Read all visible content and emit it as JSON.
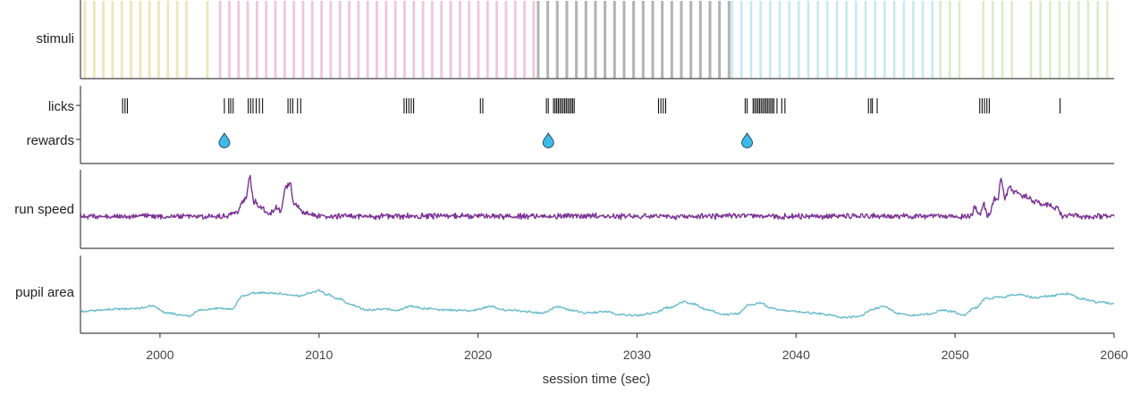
{
  "chart_data": {
    "type": "line",
    "xlabel": "session time (sec)",
    "xlim": [
      1995,
      2060
    ],
    "xticks": [
      2000,
      2010,
      2020,
      2030,
      2040,
      2050,
      2060
    ],
    "panels": [
      "stimuli",
      "licks",
      "rewards",
      "run speed",
      "pupil area"
    ],
    "colors": {
      "block1": "#f0e6b8",
      "block2": "#f0c6e0",
      "block3": "#b3b3b3",
      "block4": "#c5e8f2",
      "block5": "#d9ecc8",
      "licks": "#111111",
      "reward": "#3dbbe8",
      "run_speed": "#7b3294",
      "pupil_area": "#6bbccc",
      "axis": "#444444"
    },
    "stimuli_blocks": [
      {
        "color": "block1",
        "start": 1995.2,
        "end": 2001.6,
        "period": 0.58,
        "width": 0.16
      },
      {
        "color": "block1",
        "start": 2002.9,
        "end": 2003.3,
        "period": 0.6,
        "width": 0.16
      },
      {
        "color": "block2",
        "start": 2003.7,
        "end": 2023.5,
        "period": 0.58,
        "width": 0.16
      },
      {
        "color": "block3",
        "start": 2023.7,
        "end": 2035.8,
        "period": 0.6,
        "width": 0.17
      },
      {
        "color": "block4",
        "start": 2035.9,
        "end": 2048.9,
        "period": 0.6,
        "width": 0.14
      },
      {
        "color": "block5",
        "start": 2049.0,
        "end": 2050.2,
        "period": 0.6,
        "width": 0.14
      },
      {
        "color": "block5",
        "start": 2051.7,
        "end": 2053.6,
        "period": 0.6,
        "width": 0.14
      },
      {
        "color": "block5",
        "start": 2054.7,
        "end": 2059.6,
        "period": 0.6,
        "width": 0.14
      }
    ],
    "licks": [
      1997.65,
      1997.8,
      1997.95,
      2004.05,
      2004.32,
      2004.45,
      2004.6,
      2005.55,
      2005.7,
      2005.85,
      2006.05,
      2006.25,
      2006.45,
      2008.05,
      2008.2,
      2008.35,
      2008.65,
      2008.85,
      2015.35,
      2015.5,
      2015.65,
      2015.8,
      2015.95,
      2020.15,
      2020.3,
      2024.3,
      2024.42,
      2024.75,
      2024.85,
      2024.95,
      2025.05,
      2025.15,
      2025.25,
      2025.35,
      2025.45,
      2025.55,
      2025.65,
      2025.75,
      2025.85,
      2025.95,
      2026.05,
      2031.35,
      2031.5,
      2031.65,
      2031.8,
      2036.8,
      2036.92,
      2037.3,
      2037.4,
      2037.5,
      2037.6,
      2037.7,
      2037.8,
      2037.9,
      2038.0,
      2038.1,
      2038.2,
      2038.3,
      2038.4,
      2038.5,
      2038.6,
      2038.8,
      2039.1,
      2039.3,
      2044.55,
      2044.7,
      2044.8,
      2045.1,
      2051.55,
      2051.7,
      2051.85,
      2052.0,
      2052.15,
      2056.6
    ],
    "rewards": [
      2004.05,
      2024.42,
      2036.92
    ],
    "run_speed_peaks": [
      {
        "t": 2004.6,
        "a": 0.12,
        "w": 0.15
      },
      {
        "t": 2005.3,
        "a": 0.45,
        "w": 0.25
      },
      {
        "t": 2005.65,
        "a": 0.9,
        "w": 0.12
      },
      {
        "t": 2006.0,
        "a": 0.35,
        "w": 0.15
      },
      {
        "t": 2006.4,
        "a": 0.25,
        "w": 0.2
      },
      {
        "t": 2007.3,
        "a": 0.25,
        "w": 0.2
      },
      {
        "t": 2007.9,
        "a": 0.8,
        "w": 0.15
      },
      {
        "t": 2008.2,
        "a": 0.78,
        "w": 0.12
      },
      {
        "t": 2008.6,
        "a": 0.3,
        "w": 0.2
      },
      {
        "t": 2009.2,
        "a": 0.1,
        "w": 0.25
      },
      {
        "t": 2051.25,
        "a": 0.3,
        "w": 0.1
      },
      {
        "t": 2051.8,
        "a": 0.35,
        "w": 0.1
      },
      {
        "t": 2052.5,
        "a": 0.5,
        "w": 0.15
      },
      {
        "t": 2052.9,
        "a": 1.0,
        "w": 0.12
      },
      {
        "t": 2053.4,
        "a": 0.75,
        "w": 0.2
      },
      {
        "t": 2053.9,
        "a": 0.55,
        "w": 0.25
      },
      {
        "t": 2054.5,
        "a": 0.5,
        "w": 0.3
      },
      {
        "t": 2055.2,
        "a": 0.35,
        "w": 0.3
      },
      {
        "t": 2055.9,
        "a": 0.3,
        "w": 0.25
      },
      {
        "t": 2056.4,
        "a": 0.2,
        "w": 0.15
      }
    ],
    "pupil_area": {
      "t": [
        1995,
        1997,
        1998.5,
        1999.5,
        2000.5,
        2001.2,
        2001.8,
        2002.5,
        2003.5,
        2004.5,
        2005.2,
        2006,
        2007,
        2008,
        2008.8,
        2009.5,
        2010,
        2010.5,
        2011.3,
        2012,
        2013,
        2014,
        2015,
        2015.8,
        2016.5,
        2018,
        2019.5,
        2020.8,
        2021.8,
        2023,
        2024,
        2025,
        2025.8,
        2026.8,
        2028,
        2029,
        2030,
        2031,
        2032,
        2033,
        2033.5,
        2034.5,
        2035.5,
        2036.3,
        2037,
        2037.8,
        2038.3,
        2039,
        2040,
        2041,
        2042,
        2043,
        2044,
        2044.8,
        2045.5,
        2046.5,
        2047.5,
        2048.5,
        2049.2,
        2049.8,
        2050.5,
        2051.2,
        2052,
        2053,
        2054,
        2055,
        2056,
        2057,
        2058,
        2059,
        2060
      ],
      "v": [
        0.28,
        0.31,
        0.32,
        0.35,
        0.26,
        0.24,
        0.22,
        0.3,
        0.32,
        0.31,
        0.48,
        0.52,
        0.52,
        0.5,
        0.48,
        0.52,
        0.55,
        0.5,
        0.44,
        0.37,
        0.3,
        0.31,
        0.3,
        0.35,
        0.32,
        0.3,
        0.29,
        0.34,
        0.3,
        0.28,
        0.26,
        0.34,
        0.3,
        0.26,
        0.28,
        0.24,
        0.23,
        0.26,
        0.33,
        0.4,
        0.38,
        0.3,
        0.24,
        0.25,
        0.36,
        0.39,
        0.33,
        0.3,
        0.28,
        0.26,
        0.24,
        0.2,
        0.22,
        0.31,
        0.34,
        0.25,
        0.23,
        0.25,
        0.3,
        0.28,
        0.23,
        0.32,
        0.45,
        0.47,
        0.5,
        0.46,
        0.48,
        0.51,
        0.44,
        0.4,
        0.38
      ]
    }
  }
}
